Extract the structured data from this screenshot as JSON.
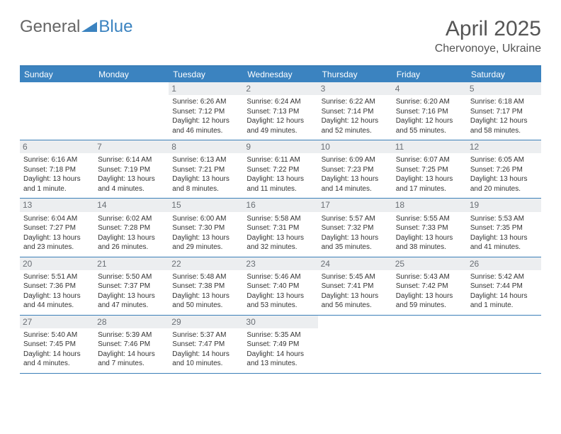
{
  "logo": {
    "part1": "General",
    "part2": "Blue"
  },
  "title": "April 2025",
  "location": "Chervonoye, Ukraine",
  "colors": {
    "header_bg": "#3b83c0",
    "header_text": "#ffffff",
    "rule": "#3b7fb8",
    "daynum_bg": "#eceef0",
    "daynum_text": "#6a6f75",
    "body_text": "#333333"
  },
  "day_headers": [
    "Sunday",
    "Monday",
    "Tuesday",
    "Wednesday",
    "Thursday",
    "Friday",
    "Saturday"
  ],
  "weeks": [
    [
      {
        "empty": true
      },
      {
        "empty": true
      },
      {
        "n": "1",
        "sr": "Sunrise: 6:26 AM",
        "ss": "Sunset: 7:12 PM",
        "dl": "Daylight: 12 hours and 46 minutes."
      },
      {
        "n": "2",
        "sr": "Sunrise: 6:24 AM",
        "ss": "Sunset: 7:13 PM",
        "dl": "Daylight: 12 hours and 49 minutes."
      },
      {
        "n": "3",
        "sr": "Sunrise: 6:22 AM",
        "ss": "Sunset: 7:14 PM",
        "dl": "Daylight: 12 hours and 52 minutes."
      },
      {
        "n": "4",
        "sr": "Sunrise: 6:20 AM",
        "ss": "Sunset: 7:16 PM",
        "dl": "Daylight: 12 hours and 55 minutes."
      },
      {
        "n": "5",
        "sr": "Sunrise: 6:18 AM",
        "ss": "Sunset: 7:17 PM",
        "dl": "Daylight: 12 hours and 58 minutes."
      }
    ],
    [
      {
        "n": "6",
        "sr": "Sunrise: 6:16 AM",
        "ss": "Sunset: 7:18 PM",
        "dl": "Daylight: 13 hours and 1 minute."
      },
      {
        "n": "7",
        "sr": "Sunrise: 6:14 AM",
        "ss": "Sunset: 7:19 PM",
        "dl": "Daylight: 13 hours and 4 minutes."
      },
      {
        "n": "8",
        "sr": "Sunrise: 6:13 AM",
        "ss": "Sunset: 7:21 PM",
        "dl": "Daylight: 13 hours and 8 minutes."
      },
      {
        "n": "9",
        "sr": "Sunrise: 6:11 AM",
        "ss": "Sunset: 7:22 PM",
        "dl": "Daylight: 13 hours and 11 minutes."
      },
      {
        "n": "10",
        "sr": "Sunrise: 6:09 AM",
        "ss": "Sunset: 7:23 PM",
        "dl": "Daylight: 13 hours and 14 minutes."
      },
      {
        "n": "11",
        "sr": "Sunrise: 6:07 AM",
        "ss": "Sunset: 7:25 PM",
        "dl": "Daylight: 13 hours and 17 minutes."
      },
      {
        "n": "12",
        "sr": "Sunrise: 6:05 AM",
        "ss": "Sunset: 7:26 PM",
        "dl": "Daylight: 13 hours and 20 minutes."
      }
    ],
    [
      {
        "n": "13",
        "sr": "Sunrise: 6:04 AM",
        "ss": "Sunset: 7:27 PM",
        "dl": "Daylight: 13 hours and 23 minutes."
      },
      {
        "n": "14",
        "sr": "Sunrise: 6:02 AM",
        "ss": "Sunset: 7:28 PM",
        "dl": "Daylight: 13 hours and 26 minutes."
      },
      {
        "n": "15",
        "sr": "Sunrise: 6:00 AM",
        "ss": "Sunset: 7:30 PM",
        "dl": "Daylight: 13 hours and 29 minutes."
      },
      {
        "n": "16",
        "sr": "Sunrise: 5:58 AM",
        "ss": "Sunset: 7:31 PM",
        "dl": "Daylight: 13 hours and 32 minutes."
      },
      {
        "n": "17",
        "sr": "Sunrise: 5:57 AM",
        "ss": "Sunset: 7:32 PM",
        "dl": "Daylight: 13 hours and 35 minutes."
      },
      {
        "n": "18",
        "sr": "Sunrise: 5:55 AM",
        "ss": "Sunset: 7:33 PM",
        "dl": "Daylight: 13 hours and 38 minutes."
      },
      {
        "n": "19",
        "sr": "Sunrise: 5:53 AM",
        "ss": "Sunset: 7:35 PM",
        "dl": "Daylight: 13 hours and 41 minutes."
      }
    ],
    [
      {
        "n": "20",
        "sr": "Sunrise: 5:51 AM",
        "ss": "Sunset: 7:36 PM",
        "dl": "Daylight: 13 hours and 44 minutes."
      },
      {
        "n": "21",
        "sr": "Sunrise: 5:50 AM",
        "ss": "Sunset: 7:37 PM",
        "dl": "Daylight: 13 hours and 47 minutes."
      },
      {
        "n": "22",
        "sr": "Sunrise: 5:48 AM",
        "ss": "Sunset: 7:38 PM",
        "dl": "Daylight: 13 hours and 50 minutes."
      },
      {
        "n": "23",
        "sr": "Sunrise: 5:46 AM",
        "ss": "Sunset: 7:40 PM",
        "dl": "Daylight: 13 hours and 53 minutes."
      },
      {
        "n": "24",
        "sr": "Sunrise: 5:45 AM",
        "ss": "Sunset: 7:41 PM",
        "dl": "Daylight: 13 hours and 56 minutes."
      },
      {
        "n": "25",
        "sr": "Sunrise: 5:43 AM",
        "ss": "Sunset: 7:42 PM",
        "dl": "Daylight: 13 hours and 59 minutes."
      },
      {
        "n": "26",
        "sr": "Sunrise: 5:42 AM",
        "ss": "Sunset: 7:44 PM",
        "dl": "Daylight: 14 hours and 1 minute."
      }
    ],
    [
      {
        "n": "27",
        "sr": "Sunrise: 5:40 AM",
        "ss": "Sunset: 7:45 PM",
        "dl": "Daylight: 14 hours and 4 minutes."
      },
      {
        "n": "28",
        "sr": "Sunrise: 5:39 AM",
        "ss": "Sunset: 7:46 PM",
        "dl": "Daylight: 14 hours and 7 minutes."
      },
      {
        "n": "29",
        "sr": "Sunrise: 5:37 AM",
        "ss": "Sunset: 7:47 PM",
        "dl": "Daylight: 14 hours and 10 minutes."
      },
      {
        "n": "30",
        "sr": "Sunrise: 5:35 AM",
        "ss": "Sunset: 7:49 PM",
        "dl": "Daylight: 14 hours and 13 minutes."
      },
      {
        "empty": true
      },
      {
        "empty": true
      },
      {
        "empty": true
      }
    ]
  ]
}
